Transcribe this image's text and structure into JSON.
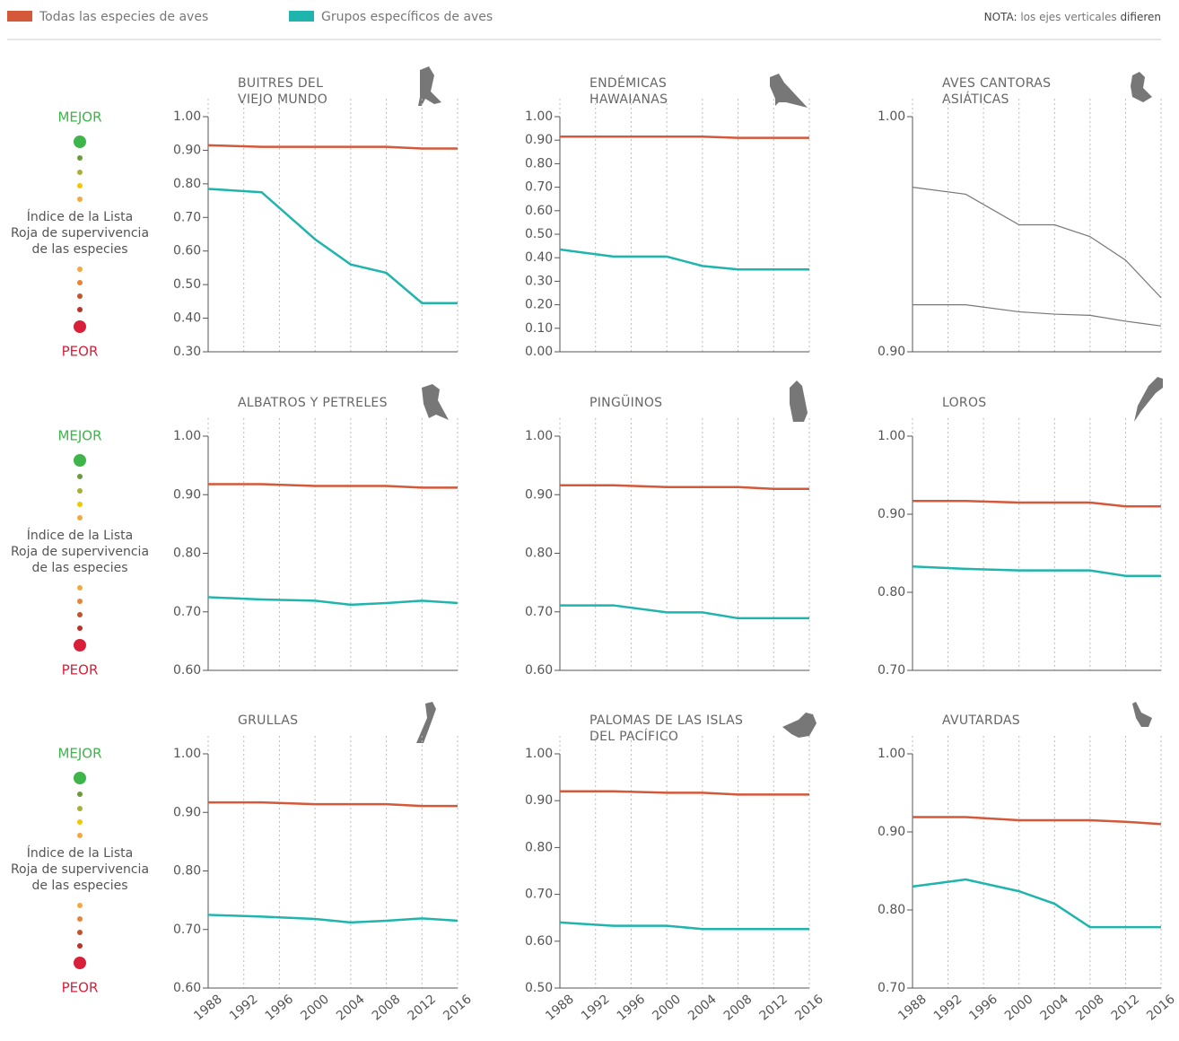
{
  "legend": [
    {
      "name": "Todas las especies de aves",
      "color": "#d4583a"
    },
    {
      "name": "Grupos específicos de aves",
      "color": "#1fb5ad"
    }
  ],
  "note": {
    "label": "NOTA:",
    "text": "los ejes verticales",
    "emphasis": "difieren"
  },
  "scale_legend": {
    "best": "MEJOR",
    "label_lines": [
      "Índice de la Lista",
      "Roja de supervivencia",
      "de las especies"
    ],
    "worst": "PEOR"
  },
  "chart_data": [
    {
      "type": "line",
      "title": [
        "BUITRES DEL",
        "VIEJO MUNDO"
      ],
      "x": [
        1988,
        1994,
        2000,
        2004,
        2008,
        2012,
        2016
      ],
      "xlim": [
        1988,
        2016
      ],
      "xticks": [
        1988,
        1992,
        1996,
        2000,
        2004,
        2008,
        2012,
        2016
      ],
      "ylim": [
        0.3,
        1
      ],
      "yticks": [
        {
          "value": 1,
          "label": "1.00"
        },
        {
          "value": 0.9,
          "label": "0.90"
        },
        {
          "value": 0.8,
          "label": "0.80"
        },
        {
          "value": 0.7,
          "label": "0.70"
        },
        {
          "value": 0.6,
          "label": "0.60"
        },
        {
          "value": 0.5,
          "label": "0.50"
        },
        {
          "value": 0.4,
          "label": "0.40"
        },
        {
          "value": 0.3,
          "label": "0.30"
        }
      ],
      "series": [
        {
          "color": "#d4583a",
          "values": [
            0.915,
            0.91,
            0.91,
            0.91,
            0.91,
            0.905,
            0.905
          ]
        },
        {
          "color": "#1fb5ad",
          "values": [
            0.785,
            0.775,
            0.635,
            0.56,
            0.535,
            0.445,
            0.445
          ]
        }
      ]
    },
    {
      "type": "line",
      "title": [
        "ENDÉMICAS",
        "HAWAIANAS"
      ],
      "x": [
        1988,
        1994,
        2000,
        2004,
        2008,
        2012,
        2016
      ],
      "xlim": [
        1988,
        2016
      ],
      "xticks": [
        1988,
        1992,
        1996,
        2000,
        2004,
        2008,
        2012,
        2016
      ],
      "ylim": [
        0,
        1
      ],
      "yticks": [
        {
          "value": 1,
          "label": "1.00"
        },
        {
          "value": 0.9,
          "label": "0.90"
        },
        {
          "value": 0.8,
          "label": "0.80"
        },
        {
          "value": 0.7,
          "label": "0.70"
        },
        {
          "value": 0.6,
          "label": "0.60"
        },
        {
          "value": 0.5,
          "label": "0.50"
        },
        {
          "value": 0.4,
          "label": "0.40"
        },
        {
          "value": 0.3,
          "label": "0.30"
        },
        {
          "value": 0.2,
          "label": "0.20"
        },
        {
          "value": 0.1,
          "label": "0.10"
        },
        {
          "value": 0,
          "label": "0.00"
        }
      ],
      "series": [
        {
          "color": "#d4583a",
          "values": [
            0.915,
            0.915,
            0.915,
            0.915,
            0.91,
            0.91,
            0.91
          ]
        },
        {
          "color": "#1fb5ad",
          "values": [
            0.435,
            0.405,
            0.405,
            0.365,
            0.35,
            0.35,
            0.35
          ]
        }
      ]
    },
    {
      "type": "line",
      "title": [
        "AVES CANTORAS",
        "ASIÁTICAS"
      ],
      "x": [
        1988,
        1994,
        2000,
        2004,
        2008,
        2012,
        2016
      ],
      "xlim": [
        1988,
        2016
      ],
      "xticks": [
        1988,
        1992,
        1996,
        2000,
        2004,
        2008,
        2012,
        2016
      ],
      "ylim": [
        0.9,
        1
      ],
      "yticks": [
        {
          "value": 1,
          "label": "1.00"
        },
        {
          "value": 0.9,
          "label": "0.90"
        }
      ],
      "series": [
        {
          "color": "#777777",
          "values": [
            0.97,
            0.967,
            0.954,
            0.954,
            0.949,
            0.939,
            0.923
          ]
        },
        {
          "color": "#777777",
          "values": [
            0.92,
            0.92,
            0.917,
            0.916,
            0.9155,
            0.913,
            0.911
          ]
        }
      ]
    },
    {
      "type": "line",
      "title": [
        "ALBATROS Y PETRELES"
      ],
      "x": [
        1988,
        1994,
        2000,
        2004,
        2008,
        2012,
        2016
      ],
      "xlim": [
        1988,
        2016
      ],
      "xticks": [
        1988,
        1992,
        1996,
        2000,
        2004,
        2008,
        2012,
        2016
      ],
      "ylim": [
        0.6,
        1
      ],
      "yticks": [
        {
          "value": 1,
          "label": "1.00"
        },
        {
          "value": 0.9,
          "label": "0.90"
        },
        {
          "value": 0.8,
          "label": "0.80"
        },
        {
          "value": 0.7,
          "label": "0.70"
        },
        {
          "value": 0.6,
          "label": "0.60"
        }
      ],
      "series": [
        {
          "color": "#d4583a",
          "values": [
            0.918,
            0.918,
            0.915,
            0.915,
            0.915,
            0.912,
            0.912
          ]
        },
        {
          "color": "#1fb5ad",
          "values": [
            0.725,
            0.721,
            0.719,
            0.712,
            0.715,
            0.719,
            0.715
          ]
        }
      ]
    },
    {
      "type": "line",
      "title": [
        "PINGÜINOS"
      ],
      "x": [
        1988,
        1994,
        2000,
        2004,
        2008,
        2012,
        2016
      ],
      "xlim": [
        1988,
        2016
      ],
      "xticks": [
        1988,
        1992,
        1996,
        2000,
        2004,
        2008,
        2012,
        2016
      ],
      "ylim": [
        0.6,
        1
      ],
      "yticks": [
        {
          "value": 1,
          "label": "1.00"
        },
        {
          "value": 0.9,
          "label": "0.90"
        },
        {
          "value": 0.8,
          "label": "0.80"
        },
        {
          "value": 0.7,
          "label": "0.70"
        },
        {
          "value": 0.6,
          "label": "0.60"
        }
      ],
      "series": [
        {
          "color": "#d4583a",
          "values": [
            0.916,
            0.916,
            0.913,
            0.913,
            0.913,
            0.91,
            0.91
          ]
        },
        {
          "color": "#1fb5ad",
          "values": [
            0.711,
            0.711,
            0.699,
            0.699,
            0.689,
            0.689,
            0.689
          ]
        }
      ]
    },
    {
      "type": "line",
      "title": [
        "LOROS"
      ],
      "x": [
        1988,
        1994,
        2000,
        2004,
        2008,
        2012,
        2016
      ],
      "xlim": [
        1988,
        2016
      ],
      "xticks": [
        1988,
        1992,
        1996,
        2000,
        2004,
        2008,
        2012,
        2016
      ],
      "ylim": [
        0.7,
        1
      ],
      "yticks": [
        {
          "value": 1,
          "label": "1.00"
        },
        {
          "value": 0.9,
          "label": "0.90"
        },
        {
          "value": 0.8,
          "label": "0.80"
        },
        {
          "value": 0.7,
          "label": "0.70"
        }
      ],
      "series": [
        {
          "color": "#d4583a",
          "values": [
            0.917,
            0.917,
            0.915,
            0.915,
            0.915,
            0.91,
            0.91
          ]
        },
        {
          "color": "#1fb5ad",
          "values": [
            0.833,
            0.83,
            0.828,
            0.828,
            0.828,
            0.821,
            0.821
          ]
        }
      ]
    },
    {
      "type": "line",
      "title": [
        "GRULLAS"
      ],
      "x": [
        1988,
        1994,
        2000,
        2004,
        2008,
        2012,
        2016
      ],
      "xlim": [
        1988,
        2016
      ],
      "xticks": [
        1988,
        1992,
        1996,
        2000,
        2004,
        2008,
        2012,
        2016
      ],
      "ylim": [
        0.6,
        1
      ],
      "yticks": [
        {
          "value": 1,
          "label": "1.00"
        },
        {
          "value": 0.9,
          "label": "0.90"
        },
        {
          "value": 0.8,
          "label": "0.80"
        },
        {
          "value": 0.7,
          "label": "0.70"
        },
        {
          "value": 0.6,
          "label": "0.60"
        }
      ],
      "series": [
        {
          "color": "#d4583a",
          "values": [
            0.917,
            0.917,
            0.914,
            0.914,
            0.914,
            0.911,
            0.911
          ]
        },
        {
          "color": "#1fb5ad",
          "values": [
            0.725,
            0.722,
            0.718,
            0.712,
            0.715,
            0.719,
            0.715
          ]
        }
      ]
    },
    {
      "type": "line",
      "title": [
        "PALOMAS DE LAS ISLAS",
        "DEL PACÍFICO"
      ],
      "x": [
        1988,
        1994,
        2000,
        2004,
        2008,
        2012,
        2016
      ],
      "xlim": [
        1988,
        2016
      ],
      "xticks": [
        1988,
        1992,
        1996,
        2000,
        2004,
        2008,
        2012,
        2016
      ],
      "ylim": [
        0.5,
        1
      ],
      "yticks": [
        {
          "value": 1,
          "label": "1.00"
        },
        {
          "value": 0.9,
          "label": "0.90"
        },
        {
          "value": 0.8,
          "label": "0.80"
        },
        {
          "value": 0.7,
          "label": "0.70"
        },
        {
          "value": 0.6,
          "label": "0.60"
        },
        {
          "value": 0.5,
          "label": "0.50"
        }
      ],
      "series": [
        {
          "color": "#d4583a",
          "values": [
            0.92,
            0.92,
            0.917,
            0.917,
            0.913,
            0.913,
            0.913
          ]
        },
        {
          "color": "#1fb5ad",
          "values": [
            0.64,
            0.633,
            0.633,
            0.626,
            0.626,
            0.626,
            0.626
          ]
        }
      ]
    },
    {
      "type": "line",
      "title": [
        "AVUTARDAS"
      ],
      "x": [
        1988,
        1994,
        2000,
        2004,
        2008,
        2012,
        2016
      ],
      "xlim": [
        1988,
        2016
      ],
      "xticks": [
        1988,
        1992,
        1996,
        2000,
        2004,
        2008,
        2012,
        2016
      ],
      "ylim": [
        0.7,
        1
      ],
      "yticks": [
        {
          "value": 1,
          "label": "1.00"
        },
        {
          "value": 0.9,
          "label": "0.90"
        },
        {
          "value": 0.8,
          "label": "0.80"
        },
        {
          "value": 0.7,
          "label": "0.70"
        }
      ],
      "series": [
        {
          "color": "#d4583a",
          "values": [
            0.919,
            0.919,
            0.915,
            0.915,
            0.915,
            0.913,
            0.91
          ]
        },
        {
          "color": "#1fb5ad",
          "values": [
            0.83,
            0.839,
            0.824,
            0.808,
            0.778,
            0.778,
            0.778
          ]
        }
      ]
    }
  ]
}
